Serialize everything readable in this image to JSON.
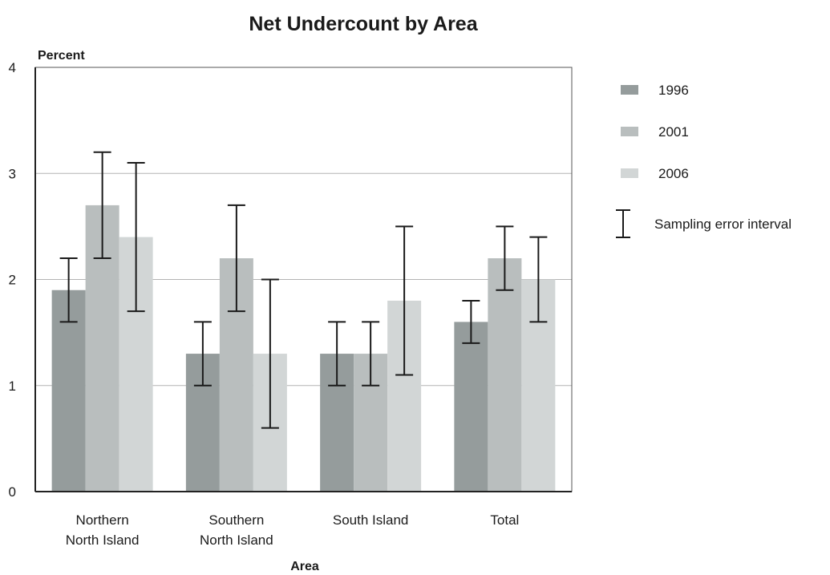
{
  "chart_data": {
    "type": "bar",
    "title": "Net Undercount by Area",
    "xlabel": "Area",
    "ylabel": "Percent",
    "ylim": [
      0,
      4
    ],
    "yticks": [
      0,
      1,
      2,
      3,
      4
    ],
    "grid": true,
    "legend_position": "right",
    "categories": [
      [
        "Northern",
        "North Island"
      ],
      [
        "Southern",
        "North Island"
      ],
      [
        "South Island"
      ],
      [
        "Total"
      ]
    ],
    "series": [
      {
        "name": "1996",
        "color": "#959c9c",
        "values": [
          1.9,
          1.3,
          1.3,
          1.6
        ],
        "error_low": [
          1.6,
          1.0,
          1.0,
          1.4
        ],
        "error_high": [
          2.2,
          1.6,
          1.6,
          1.8
        ]
      },
      {
        "name": "2001",
        "color": "#b9bebe",
        "values": [
          2.7,
          2.2,
          1.3,
          2.2
        ],
        "error_low": [
          2.2,
          1.7,
          1.0,
          1.9
        ],
        "error_high": [
          3.2,
          2.7,
          1.6,
          2.5
        ]
      },
      {
        "name": "2006",
        "color": "#d2d6d6",
        "values": [
          2.4,
          1.3,
          1.8,
          2.0
        ],
        "error_low": [
          1.7,
          0.6,
          1.1,
          1.6
        ],
        "error_high": [
          3.1,
          2.0,
          2.5,
          2.4
        ]
      }
    ],
    "error_legend_label": "Sampling error interval"
  }
}
